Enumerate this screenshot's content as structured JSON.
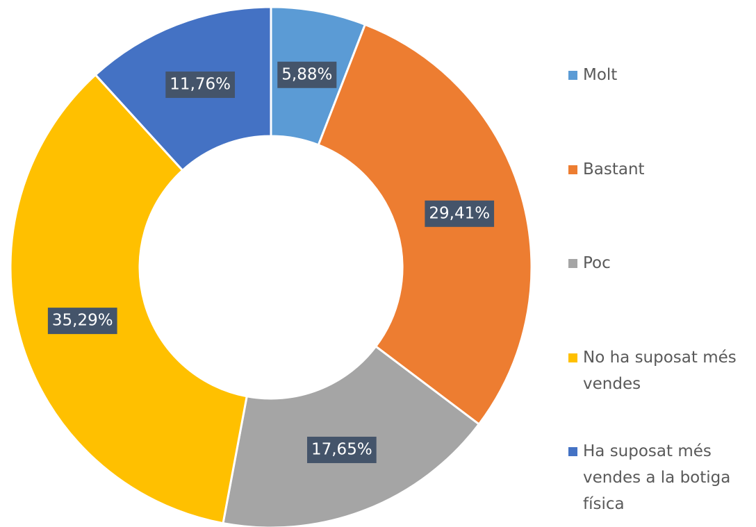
{
  "chart_data": {
    "type": "donut",
    "categories": [
      "Molt",
      "Bastant",
      "Poc",
      "No ha suposat més vendes",
      "Ha suposat més vendes a la botiga física"
    ],
    "values": [
      5.88,
      29.41,
      17.65,
      35.29,
      11.76
    ],
    "value_labels": [
      "5,88%",
      "29,41%",
      "17,65%",
      "35,29%",
      "11,76%"
    ],
    "colors": [
      "#5b9bd5",
      "#ed7d31",
      "#a5a5a5",
      "#ffc000",
      "#4472c4"
    ],
    "legend": "right"
  }
}
